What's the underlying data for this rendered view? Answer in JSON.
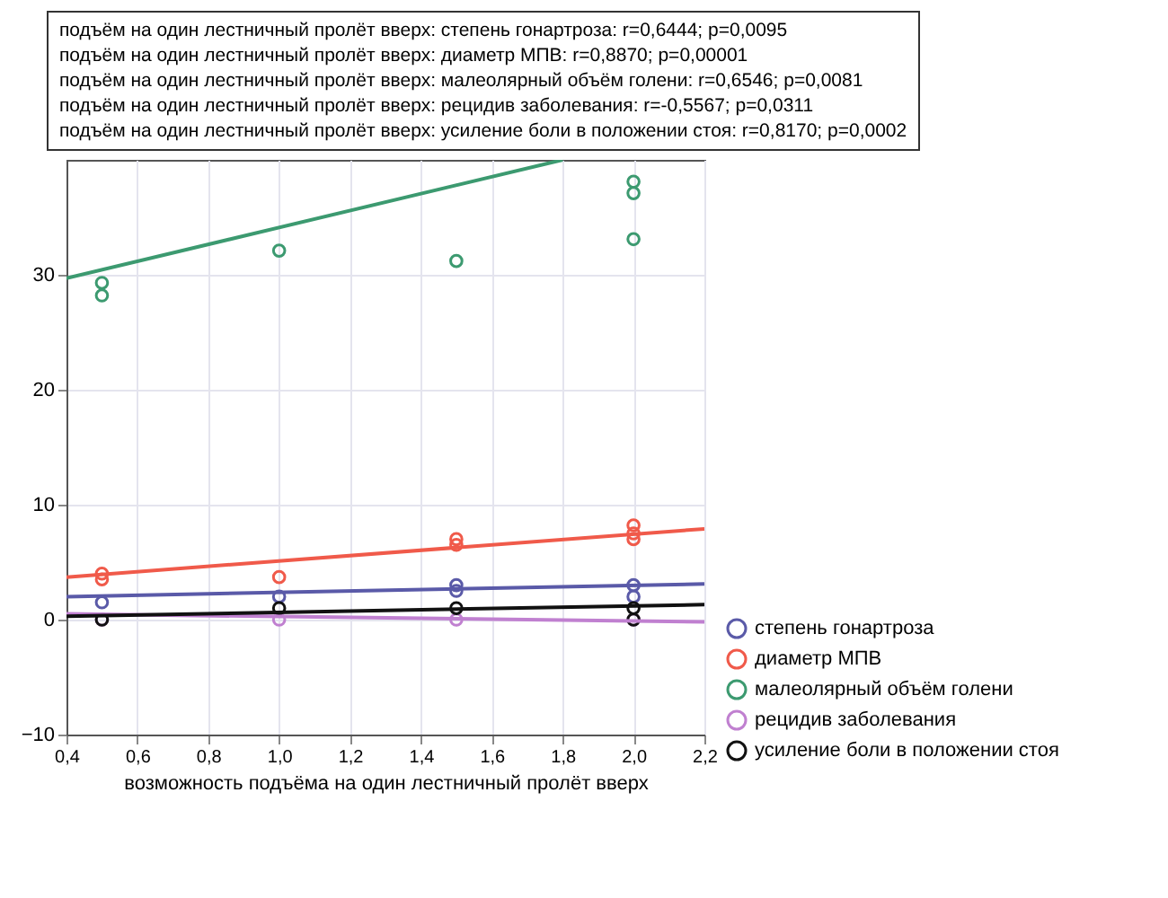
{
  "chart_data": {
    "type": "scatter",
    "annotations": [
      "подъём на один лестничный пролёт вверх: степень гонартроза: r=0,6444; p=0,0095",
      "подъём на один лестничный пролёт вверх: диаметр МПВ: r=0,8870; p=0,00001",
      "подъём на один лестничный пролёт вверх: малеолярный объём голени: r=0,6546; p=0,0081",
      "подъём на один лестничный пролёт вверх: рецидив заболевания: r=-0,5567; p=0,0311",
      "подъём на один лестничный пролёт вверх: усиление боли в положении стоя: r=0,8170; p=0,0002"
    ],
    "xlabel": "возможность подъёма на один лестничный пролёт вверх",
    "xlim": [
      0.4,
      2.2
    ],
    "xticks": [
      {
        "value": 0.4,
        "label": "0,4"
      },
      {
        "value": 0.6,
        "label": "0,6"
      },
      {
        "value": 0.8,
        "label": "0,8"
      },
      {
        "value": 1.0,
        "label": "1,0"
      },
      {
        "value": 1.2,
        "label": "1,2"
      },
      {
        "value": 1.4,
        "label": "1,4"
      },
      {
        "value": 1.6,
        "label": "1,6"
      },
      {
        "value": 1.8,
        "label": "1,8"
      },
      {
        "value": 2.0,
        "label": "2,0"
      },
      {
        "value": 2.2,
        "label": "2,2"
      }
    ],
    "ylim": [
      -10,
      40
    ],
    "yticks": [
      -10,
      0,
      10,
      20,
      30
    ],
    "grid": true,
    "legend": "bottom right",
    "marker": "circle",
    "series": [
      {
        "name": "степень гонартроза",
        "color": "#5a5aa8",
        "x": [
          0.5,
          1.0,
          1.5,
          1.5,
          2.0,
          2.0
        ],
        "values": [
          1.5,
          2,
          3,
          2.5,
          3,
          2
        ]
      },
      {
        "name": "диаметр МПВ",
        "color": "#f05a4a",
        "x": [
          0.5,
          0.5,
          1.0,
          1.5,
          1.5,
          2.0,
          2.0,
          2.0
        ],
        "values": [
          4,
          3.5,
          3.7,
          7,
          6.5,
          8.2,
          7.5,
          7
        ]
      },
      {
        "name": "малеолярный объём голени",
        "color": "#3c9a70",
        "x": [
          0.5,
          0.5,
          1.0,
          1.5,
          2.0,
          2.0,
          2.0
        ],
        "values": [
          29.3,
          28.2,
          32.1,
          31.2,
          38.1,
          37.1,
          33.1
        ]
      },
      {
        "name": "рецидив заболевания",
        "color": "#c080d0",
        "x": [
          0.5,
          1.0,
          1.5,
          2.0
        ],
        "values": [
          0,
          0,
          0,
          0
        ]
      },
      {
        "name": "усиление боли в положении стоя",
        "color": "#111111",
        "x": [
          0.5,
          1.0,
          1.5,
          2.0,
          2.0
        ],
        "values": [
          0,
          1,
          1,
          1,
          0
        ]
      },
      {
        "type": "line",
        "marker": "none",
        "color": "#5a5aa8",
        "x": [
          0.4,
          2.2
        ],
        "values": [
          2.0,
          3.1
        ]
      },
      {
        "type": "line",
        "marker": "none",
        "color": "#f05a4a",
        "x": [
          0.4,
          2.2
        ],
        "values": [
          3.7,
          7.9
        ]
      },
      {
        "type": "line",
        "marker": "none",
        "color": "#3c9a70",
        "x": [
          0.4,
          1.8
        ],
        "values": [
          29.7,
          40
        ]
      },
      {
        "type": "line",
        "marker": "none",
        "color": "#c080d0",
        "x": [
          0.4,
          2.2
        ],
        "values": [
          0.5,
          -0.2
        ]
      },
      {
        "type": "line",
        "marker": "none",
        "color": "#111111",
        "x": [
          0.4,
          2.2
        ],
        "values": [
          0.3,
          1.3
        ]
      }
    ]
  }
}
